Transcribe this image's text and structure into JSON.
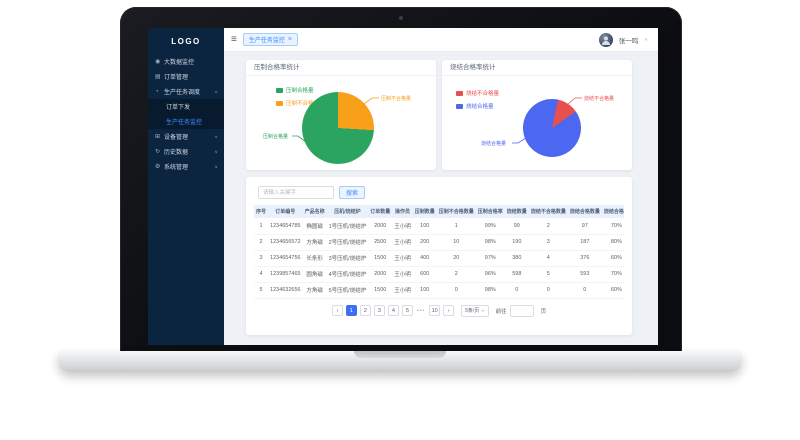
{
  "sidebar": {
    "logo": "LOGO",
    "items": [
      {
        "label": "大数据监控",
        "icon": "monitor-icon"
      },
      {
        "label": "订单管理",
        "icon": "order-icon"
      },
      {
        "label": "生产任务调度",
        "icon": "schedule-icon",
        "caret": "up"
      },
      {
        "label": "订单下发",
        "sub": true
      },
      {
        "label": "生产任务监控",
        "sub": true,
        "active": true
      },
      {
        "label": "设备管理",
        "icon": "device-icon",
        "caret": "down"
      },
      {
        "label": "历史数据",
        "icon": "history-icon",
        "caret": "down"
      },
      {
        "label": "系统管理",
        "icon": "system-icon",
        "caret": "down"
      }
    ]
  },
  "topbar": {
    "menu_icon": "≡",
    "tag_label": "生产任务监控",
    "tag_close": "×",
    "username": "张一鸣",
    "user_caret": "∨"
  },
  "chart_data": [
    {
      "type": "pie",
      "title": "压制合格率统计",
      "legend_position": "left",
      "start_angle": 0,
      "legend": [
        {
          "label": "压制合格量",
          "color": "#2aa45e"
        },
        {
          "label": "压制不合格量",
          "color": "#f9a01b"
        }
      ],
      "series": [
        {
          "name": "压制不合格量",
          "value": 26,
          "color": "#f9a01b"
        },
        {
          "name": "压制合格量",
          "value": 74,
          "color": "#2aa45e"
        }
      ],
      "callout_right": "压制不合格量",
      "callout_left": "压制合格量"
    },
    {
      "type": "pie",
      "title": "烧结合格率统计",
      "legend_position": "left",
      "start_angle": 12,
      "legend": [
        {
          "label": "烧结不合格量",
          "color": "#ea4f4f"
        },
        {
          "label": "烧结合格量",
          "color": "#4d68f0"
        }
      ],
      "series": [
        {
          "name": "烧结不合格量",
          "value": 12,
          "color": "#ea4f4f"
        },
        {
          "name": "烧结合格量",
          "value": 88,
          "color": "#4d68f0"
        }
      ],
      "callout_right": "烧结不合格量",
      "callout_left": "烧结合格量"
    }
  ],
  "search": {
    "placeholder": "请输入关键字",
    "button_label": "搜索"
  },
  "table": {
    "columns": [
      "序号",
      "订单编号",
      "产品名称",
      "压机/烧结炉",
      "订单数量",
      "操作员",
      "压制数量",
      "压制不合格数量",
      "压制合格率",
      "烧结数量",
      "烧结不合格数量",
      "烧结合格数量",
      "烧结合格率",
      "已完成数量",
      "未完成数量"
    ],
    "rows": [
      [
        "1",
        "1234654785",
        "椭圆磁",
        "1号压机/烧结炉",
        "2000",
        "王小明",
        "100",
        "1",
        "99%",
        "99",
        "2",
        "97",
        "70%",
        "97",
        "3"
      ],
      [
        "2",
        "1234656572",
        "方角磁",
        "2号压机/烧结炉",
        "2500",
        "王小明",
        "200",
        "10",
        "98%",
        "190",
        "3",
        "187",
        "80%",
        "187",
        "13"
      ],
      [
        "3",
        "1234654756",
        "长条形",
        "3号压机/烧结炉",
        "1500",
        "王小明",
        "400",
        "20",
        "97%",
        "380",
        "4",
        "376",
        "60%",
        "376",
        "24"
      ],
      [
        "4",
        "1239857465",
        "圆角磁",
        "4号压机/烧结炉",
        "2000",
        "王小明",
        "600",
        "2",
        "96%",
        "598",
        "5",
        "593",
        "70%",
        "593",
        "7"
      ],
      [
        "5",
        "1234632656",
        "方角磁",
        "5号压机/烧结炉",
        "1500",
        "王小明",
        "100",
        "0",
        "98%",
        "0",
        "0",
        "0",
        "60%",
        "0",
        "0"
      ]
    ]
  },
  "pagination": {
    "prev": "‹",
    "pages": [
      "1",
      "2",
      "3",
      "4",
      "5"
    ],
    "active_page": "1",
    "ellipsis": "•••",
    "last_page": "10",
    "next": "›",
    "page_size": "5条/页",
    "page_size_caret": "∨",
    "jump_label": "前往",
    "jump_value": "",
    "jump_suffix": "页"
  },
  "colors": {
    "sidebar_bg": "#0b2440",
    "active_link": "#3f8cff",
    "green": "#2aa45e",
    "orange": "#f9a01b",
    "red": "#ea4f4f",
    "blue": "#4d68f0",
    "accent": "#3f6ef5"
  }
}
